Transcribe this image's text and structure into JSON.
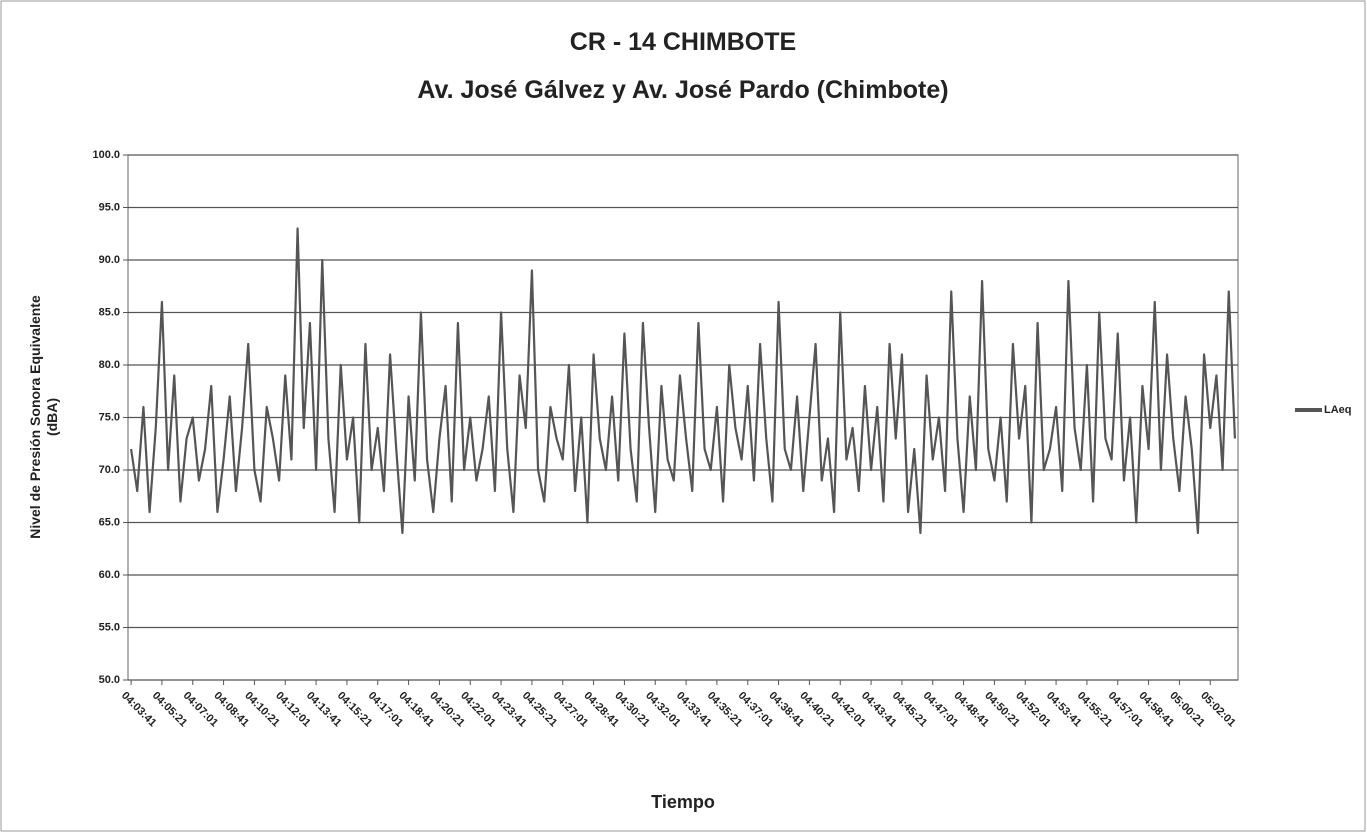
{
  "chart_data": {
    "type": "line",
    "title": [
      "CR - 14 CHIMBOTE",
      "Av. José Gálvez y Av. José Pardo (Chimbote)"
    ],
    "xlabel": "Tiempo",
    "ylabel": [
      "Nivel de Presión Sonora Equivalente",
      "(dBA)"
    ],
    "ylim": [
      50,
      100
    ],
    "yticks": [
      {
        "value": 50,
        "label": "50.0"
      },
      {
        "value": 55,
        "label": "55.0"
      },
      {
        "value": 60,
        "label": "60.0"
      },
      {
        "value": 65,
        "label": "65.0"
      },
      {
        "value": 70,
        "label": "70.0"
      },
      {
        "value": 75,
        "label": "75.0"
      },
      {
        "value": 80,
        "label": "80.0"
      },
      {
        "value": 85,
        "label": "85.0"
      },
      {
        "value": 90,
        "label": "90.0"
      },
      {
        "value": 95,
        "label": "95.0"
      },
      {
        "value": 100,
        "label": "100.0"
      }
    ],
    "grid": true,
    "legend": "right",
    "categories": [
      "04:03:41",
      null,
      null,
      null,
      null,
      "04:05:21",
      null,
      null,
      null,
      null,
      "04:07:01",
      null,
      null,
      null,
      null,
      "04:08:41",
      null,
      null,
      null,
      null,
      "04:10:21",
      null,
      null,
      null,
      null,
      "04:12:01",
      null,
      null,
      null,
      null,
      "04:13:41",
      null,
      null,
      null,
      null,
      "04:15:21",
      null,
      null,
      null,
      null,
      "04:17:01",
      null,
      null,
      null,
      null,
      "04:18:41",
      null,
      null,
      null,
      null,
      "04:20:21",
      null,
      null,
      null,
      null,
      "04:22:01",
      null,
      null,
      null,
      null,
      "04:23:41",
      null,
      null,
      null,
      null,
      "04:25:21",
      null,
      null,
      null,
      null,
      "04:27:01",
      null,
      null,
      null,
      null,
      "04:28:41",
      null,
      null,
      null,
      null,
      "04:30:21",
      null,
      null,
      null,
      null,
      "04:32:01",
      null,
      null,
      null,
      null,
      "04:33:41",
      null,
      null,
      null,
      null,
      "04:35:21",
      null,
      null,
      null,
      null,
      "04:37:01",
      null,
      null,
      null,
      null,
      "04:38:41",
      null,
      null,
      null,
      null,
      "04:40:21",
      null,
      null,
      null,
      null,
      "04:42:01",
      null,
      null,
      null,
      null,
      "04:43:41",
      null,
      null,
      null,
      null,
      "04:45:21",
      null,
      null,
      null,
      null,
      "04:47:01",
      null,
      null,
      null,
      null,
      "04:48:41",
      null,
      null,
      null,
      null,
      "04:50:21",
      null,
      null,
      null,
      null,
      "04:52:01",
      null,
      null,
      null,
      null,
      "04:53:41",
      null,
      null,
      null,
      null,
      "04:55:21",
      null,
      null,
      null,
      null,
      "04:57:01",
      null,
      null,
      null,
      null,
      "04:58:41",
      null,
      null,
      null,
      null,
      "05:00:21",
      null,
      null,
      null,
      null,
      "05:02:01",
      null,
      null,
      null,
      null
    ],
    "series": [
      {
        "name": "LAeq",
        "color": "#555555",
        "values": [
          72,
          68,
          76,
          66,
          74,
          86,
          70,
          79,
          67,
          73,
          75,
          69,
          72,
          78,
          66,
          71,
          77,
          68,
          74,
          82,
          70,
          67,
          76,
          73,
          69,
          79,
          71,
          93,
          74,
          84,
          70,
          90,
          73,
          66,
          80,
          71,
          75,
          65,
          82,
          70,
          74,
          68,
          81,
          72,
          64,
          77,
          69,
          85,
          71,
          66,
          73,
          78,
          67,
          84,
          70,
          75,
          69,
          72,
          77,
          68,
          85,
          72,
          66,
          79,
          74,
          89,
          70,
          67,
          76,
          73,
          71,
          80,
          68,
          75,
          65,
          81,
          73,
          70,
          77,
          69,
          83,
          72,
          67,
          84,
          74,
          66,
          78,
          71,
          69,
          79,
          73,
          68,
          84,
          72,
          70,
          76,
          67,
          80,
          74,
          71,
          78,
          69,
          82,
          73,
          67,
          86,
          72,
          70,
          77,
          68,
          75,
          82,
          69,
          73,
          66,
          85,
          71,
          74,
          68,
          78,
          70,
          76,
          67,
          82,
          73,
          81,
          66,
          72,
          64,
          79,
          71,
          75,
          68,
          87,
          73,
          66,
          77,
          70,
          88,
          72,
          69,
          75,
          67,
          82,
          73,
          78,
          65,
          84,
          70,
          72,
          76,
          68,
          88,
          74,
          70,
          80,
          67,
          85,
          73,
          71,
          83,
          69,
          75,
          65,
          78,
          72,
          86,
          70,
          81,
          73,
          68,
          77,
          72,
          64,
          81,
          74,
          79,
          70,
          87,
          73
        ]
      }
    ]
  }
}
